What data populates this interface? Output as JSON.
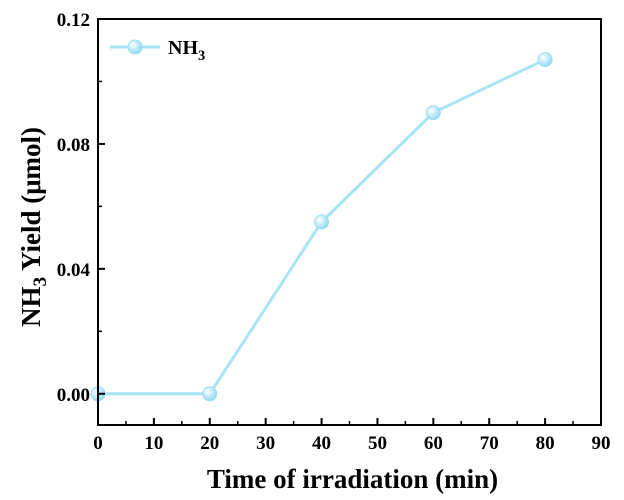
{
  "chart_data": {
    "type": "line",
    "title": "",
    "xlabel": "Time of irradiation (min)",
    "ylabel": {
      "prefix": "NH",
      "sub": "3",
      "suffix": " Yield (μmol)"
    },
    "xlim": [
      0,
      90
    ],
    "ylim": [
      -0.01,
      0.12
    ],
    "x_ticks": [
      0,
      10,
      20,
      30,
      40,
      50,
      60,
      70,
      80,
      90
    ],
    "y_ticks": [
      0.0,
      0.04,
      0.08,
      0.12
    ],
    "y_tick_labels": [
      "0.00",
      "0.04",
      "0.08",
      "0.12"
    ],
    "grid": false,
    "legend_position": "top-left",
    "series": [
      {
        "name": {
          "prefix": "NH",
          "sub": "3"
        },
        "color": "#a8e4f7",
        "x": [
          0,
          20,
          40,
          60,
          80
        ],
        "y": [
          0.0,
          0.0,
          0.055,
          0.09,
          0.107
        ]
      }
    ]
  }
}
